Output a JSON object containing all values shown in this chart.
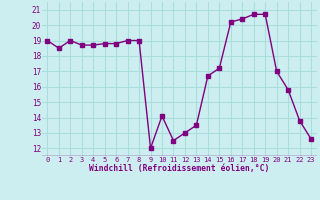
{
  "x": [
    0,
    1,
    2,
    3,
    4,
    5,
    6,
    7,
    8,
    9,
    10,
    11,
    12,
    13,
    14,
    15,
    16,
    17,
    18,
    19,
    20,
    21,
    22,
    23
  ],
  "y": [
    19.0,
    18.5,
    19.0,
    18.7,
    18.7,
    18.8,
    18.8,
    19.0,
    19.0,
    12.0,
    14.1,
    12.5,
    13.0,
    13.5,
    16.7,
    17.2,
    20.2,
    20.4,
    20.7,
    20.7,
    17.0,
    15.8,
    13.8,
    12.6
  ],
  "line_color": "#800080",
  "marker": "s",
  "marker_size": 2.5,
  "bg_color": "#cceef0",
  "grid_color": "#aadddd",
  "xlabel": "Windchill (Refroidissement éolien,°C)",
  "xlabel_color": "#800080",
  "tick_color": "#800080",
  "ylim": [
    11.5,
    21.5
  ],
  "xlim": [
    -0.5,
    23.5
  ],
  "yticks": [
    12,
    13,
    14,
    15,
    16,
    17,
    18,
    19,
    20,
    21
  ],
  "xticks": [
    0,
    1,
    2,
    3,
    4,
    5,
    6,
    7,
    8,
    9,
    10,
    11,
    12,
    13,
    14,
    15,
    16,
    17,
    18,
    19,
    20,
    21,
    22,
    23
  ],
  "xtick_labels": [
    "0",
    "1",
    "2",
    "3",
    "4",
    "5",
    "6",
    "7",
    "8",
    "9",
    "10",
    "11",
    "12",
    "13",
    "14",
    "15",
    "16",
    "17",
    "18",
    "19",
    "20",
    "21",
    "22",
    "23"
  ]
}
